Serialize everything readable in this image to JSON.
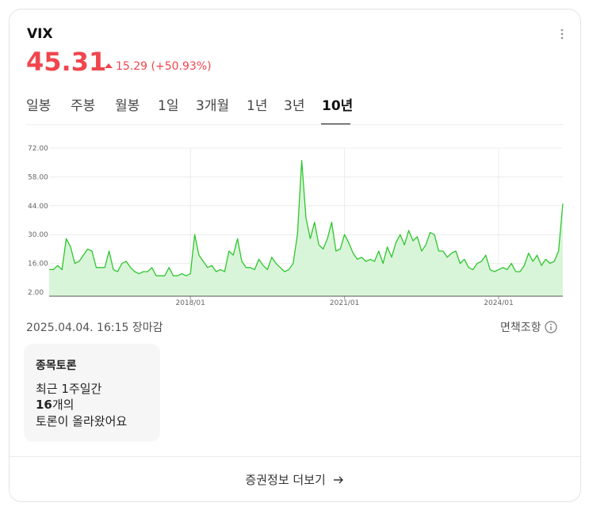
{
  "header": {
    "symbol": "VIX",
    "price": "45.31",
    "change": "15.29",
    "change_pct": "(+50.93%)"
  },
  "tabs": {
    "items": [
      "일봉",
      "주봉",
      "월봉",
      "1일",
      "3개월",
      "1년",
      "3년",
      "10년"
    ],
    "active": 7
  },
  "chart_data": {
    "type": "area",
    "color": "#2ec62e",
    "fill": "#d9f5d9",
    "grid": true,
    "x": [
      "2015/04",
      "2015/05",
      "2015/06",
      "2015/07",
      "2015/08",
      "2015/09",
      "2015/10",
      "2015/11",
      "2015/12",
      "2016/01",
      "2016/02",
      "2016/03",
      "2016/04",
      "2016/05",
      "2016/06",
      "2016/07",
      "2016/08",
      "2016/09",
      "2016/10",
      "2016/11",
      "2016/12",
      "2017/01",
      "2017/02",
      "2017/03",
      "2017/04",
      "2017/05",
      "2017/06",
      "2017/07",
      "2017/08",
      "2017/09",
      "2017/10",
      "2017/11",
      "2017/12",
      "2018/01",
      "2018/02",
      "2018/03",
      "2018/04",
      "2018/05",
      "2018/06",
      "2018/07",
      "2018/08",
      "2018/09",
      "2018/10",
      "2018/11",
      "2018/12",
      "2019/01",
      "2019/02",
      "2019/03",
      "2019/04",
      "2019/05",
      "2019/06",
      "2019/07",
      "2019/08",
      "2019/09",
      "2019/10",
      "2019/11",
      "2019/12",
      "2020/01",
      "2020/02",
      "2020/03",
      "2020/04",
      "2020/05",
      "2020/06",
      "2020/07",
      "2020/08",
      "2020/09",
      "2020/10",
      "2020/11",
      "2020/12",
      "2021/01",
      "2021/02",
      "2021/03",
      "2021/04",
      "2021/05",
      "2021/06",
      "2021/07",
      "2021/08",
      "2021/09",
      "2021/10",
      "2021/11",
      "2021/12",
      "2022/01",
      "2022/02",
      "2022/03",
      "2022/04",
      "2022/05",
      "2022/06",
      "2022/07",
      "2022/08",
      "2022/09",
      "2022/10",
      "2022/11",
      "2022/12",
      "2023/01",
      "2023/02",
      "2023/03",
      "2023/04",
      "2023/05",
      "2023/06",
      "2023/07",
      "2023/08",
      "2023/09",
      "2023/10",
      "2023/11",
      "2023/12",
      "2024/01",
      "2024/02",
      "2024/03",
      "2024/04",
      "2024/05",
      "2024/06",
      "2024/07",
      "2024/08",
      "2024/09",
      "2024/10",
      "2024/11",
      "2024/12",
      "2025/01",
      "2025/02",
      "2025/03",
      "2025/04"
    ],
    "values": [
      13,
      13,
      15,
      13,
      28,
      24,
      16,
      17,
      20,
      23,
      22,
      14,
      14,
      14,
      22,
      13,
      12,
      16,
      17,
      14,
      12,
      11,
      12,
      12,
      14,
      10,
      10,
      10,
      14,
      10,
      10,
      11,
      10,
      11,
      30,
      20,
      17,
      14,
      15,
      12,
      13,
      12,
      22,
      20,
      28,
      17,
      14,
      14,
      13,
      18,
      15,
      13,
      19,
      16,
      14,
      12,
      13,
      16,
      30,
      66,
      38,
      28,
      36,
      25,
      23,
      28,
      36,
      22,
      23,
      30,
      26,
      21,
      18,
      19,
      17,
      18,
      17,
      22,
      16,
      24,
      19,
      26,
      30,
      25,
      32,
      27,
      29,
      22,
      25,
      31,
      30,
      22,
      22,
      19,
      21,
      22,
      16,
      18,
      14,
      13,
      16,
      17,
      20,
      13,
      12,
      13,
      14,
      13,
      16,
      12,
      12,
      15,
      21,
      17,
      20,
      15,
      18,
      16,
      17,
      22,
      45
    ],
    "ylim": [
      2,
      72
    ],
    "yticks": [
      {
        "value": 2,
        "label": "2.00"
      },
      {
        "value": 16,
        "label": "16.00"
      },
      {
        "value": 30,
        "label": "30.00"
      },
      {
        "value": 44,
        "label": "44.00"
      },
      {
        "value": 58,
        "label": "58.00"
      },
      {
        "value": 72,
        "label": "72.00"
      }
    ],
    "xticks": [
      "2018/01",
      "2021/01",
      "2024/01"
    ]
  },
  "footer": {
    "timestamp": "2025.04.04. 16:15 장마감",
    "disclaimer": "면책조항"
  },
  "discussion": {
    "title": "종목토론",
    "line1": "최근 1주일간",
    "count": "16",
    "count_suffix": "개의",
    "line3": "토론이 올라왔어요"
  },
  "more_link": "증권정보 더보기"
}
